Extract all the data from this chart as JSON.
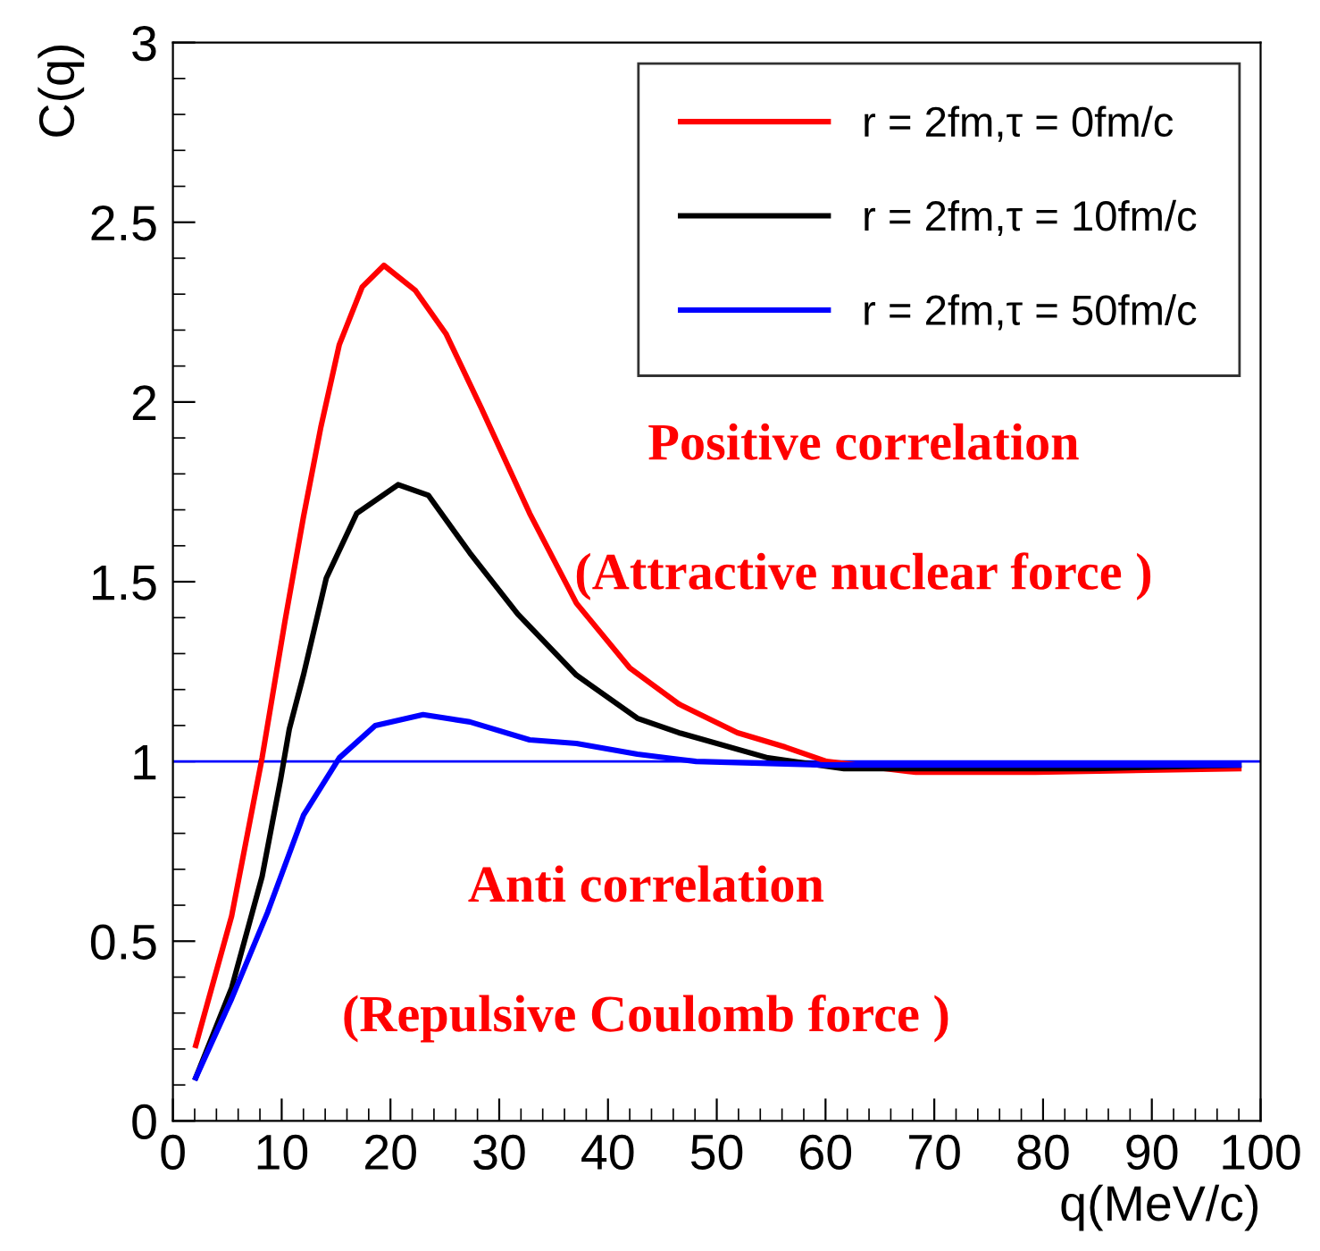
{
  "chart_data": {
    "type": "line",
    "xlabel": "q(MeV/c)",
    "ylabel": "C(q)",
    "xlim": [
      0,
      100
    ],
    "xticks": [
      0,
      10,
      20,
      30,
      40,
      50,
      60,
      70,
      80,
      90,
      100
    ],
    "ylim": [
      0,
      3
    ],
    "yticks": [
      0,
      0.5,
      1,
      1.5,
      2,
      2.5,
      3
    ],
    "grid": false,
    "legend": "top right",
    "line_style": "solid",
    "marker": "none",
    "ref_lines": [
      {
        "axis": "y",
        "value": 1,
        "color": "#0000ff"
      }
    ],
    "annotations": [
      "Positive correlation",
      "(Attractive nuclear force )",
      "Anti correlation",
      "(Repulsive Coulomb force )"
    ],
    "series": [
      {
        "name": "r = 2fm,τ = 0fm/c",
        "color": "#ff0000",
        "x": [
          2.1,
          5.4,
          8.2,
          10.3,
          12,
          13.6,
          15.3,
          17.4,
          19.4,
          22.3,
          25.1,
          28.4,
          32.8,
          37.1,
          42,
          46.5,
          51.9,
          56.3,
          60.1,
          68.3,
          79.3,
          98
        ],
        "values": [
          0.21,
          0.57,
          1.01,
          1.39,
          1.68,
          1.93,
          2.16,
          2.32,
          2.38,
          2.31,
          2.19,
          1.98,
          1.69,
          1.44,
          1.26,
          1.16,
          1.08,
          1.04,
          1.0,
          0.97,
          0.97,
          0.98
        ]
      },
      {
        "name": "r = 2fm,τ = 10fm/c",
        "color": "#000000",
        "x": [
          2.1,
          5.4,
          8.2,
          9.9,
          10.7,
          12,
          14.1,
          16.9,
          20.7,
          23.5,
          27.3,
          31.7,
          37.1,
          42.7,
          46.5,
          54.7,
          61.7,
          84.7,
          98
        ],
        "values": [
          0.12,
          0.37,
          0.68,
          0.95,
          1.09,
          1.24,
          1.51,
          1.69,
          1.77,
          1.74,
          1.58,
          1.41,
          1.24,
          1.12,
          1.08,
          1.01,
          0.98,
          0.98,
          0.99
        ]
      },
      {
        "name": "r = 2fm,τ = 50fm/c",
        "color": "#0000ff",
        "x": [
          2.1,
          5.4,
          8.7,
          12,
          15.3,
          18.6,
          23,
          27.3,
          32.8,
          37.1,
          42.7,
          48.1,
          60,
          80,
          98
        ],
        "values": [
          0.12,
          0.34,
          0.58,
          0.85,
          1.01,
          1.1,
          1.13,
          1.11,
          1.06,
          1.05,
          1.02,
          1.0,
          0.99,
          0.99,
          0.99
        ]
      }
    ]
  }
}
